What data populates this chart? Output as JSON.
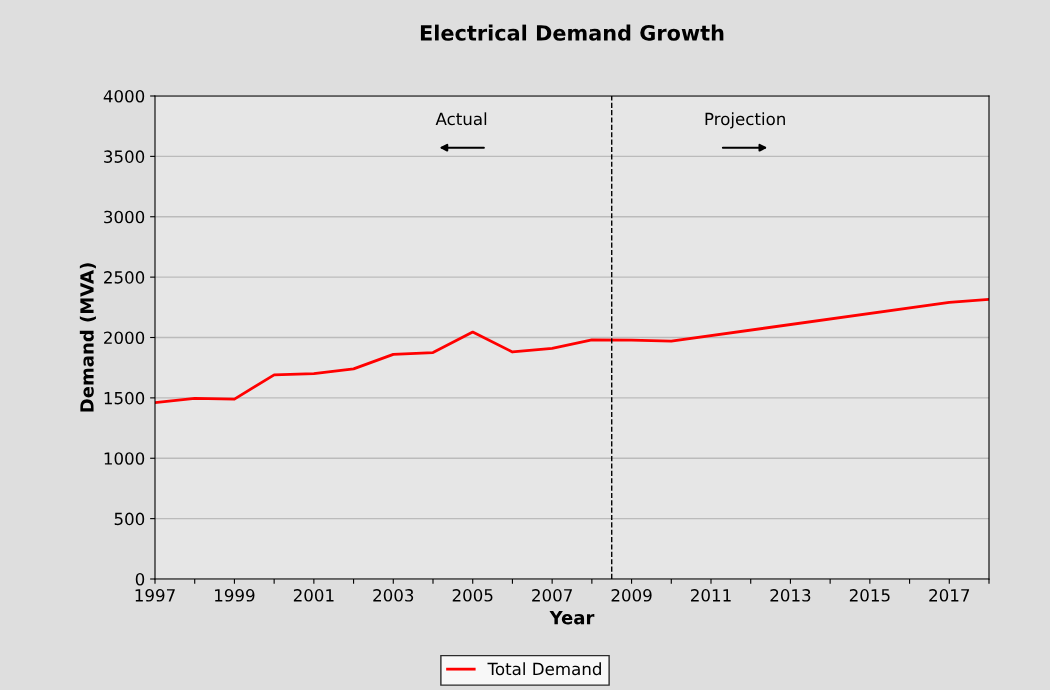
{
  "chart_data": {
    "type": "line",
    "title": "Electrical Demand Growth",
    "xlabel": "Year",
    "ylabel": "Demand (MVA)",
    "x": [
      1997,
      1998,
      1999,
      2000,
      2001,
      2002,
      2003,
      2004,
      2005,
      2006,
      2007,
      2008,
      2009,
      2010,
      2017,
      2018
    ],
    "series": [
      {
        "name": "Total Demand",
        "color": "#ff0000",
        "values": [
          1460,
          1495,
          1490,
          1690,
          1700,
          1740,
          1860,
          1875,
          2045,
          1880,
          1910,
          1980,
          1978,
          1970,
          2290,
          2315
        ]
      }
    ],
    "xlim": [
      1997,
      2018
    ],
    "ylim": [
      0,
      4000
    ],
    "xticks": [
      1997,
      {
        "value": 1998,
        "label": null
      },
      1999,
      {
        "value": 2000,
        "label": null
      },
      2001,
      {
        "value": 2002,
        "label": null
      },
      2003,
      {
        "value": 2004,
        "label": null
      },
      2005,
      {
        "value": 2006,
        "label": null
      },
      2007,
      {
        "value": 2008,
        "label": null
      },
      2009,
      {
        "value": 2010,
        "label": null
      },
      2011,
      {
        "value": 2012,
        "label": null
      },
      2013,
      {
        "value": 2014,
        "label": null
      },
      2015,
      {
        "value": 2016,
        "label": null
      },
      2017,
      {
        "value": 2018,
        "label": null
      }
    ],
    "yticks": [
      0,
      500,
      1000,
      1500,
      2000,
      2500,
      3000,
      3500,
      4000
    ],
    "ref_lines": [
      {
        "axis": "x",
        "value": 2008.5,
        "color": "#000000",
        "line_style": "dashed"
      }
    ],
    "annotations": [
      "Actual",
      "Projection"
    ],
    "grid": "y",
    "legend": "bottom",
    "marker": "none",
    "line_style": "solid"
  }
}
